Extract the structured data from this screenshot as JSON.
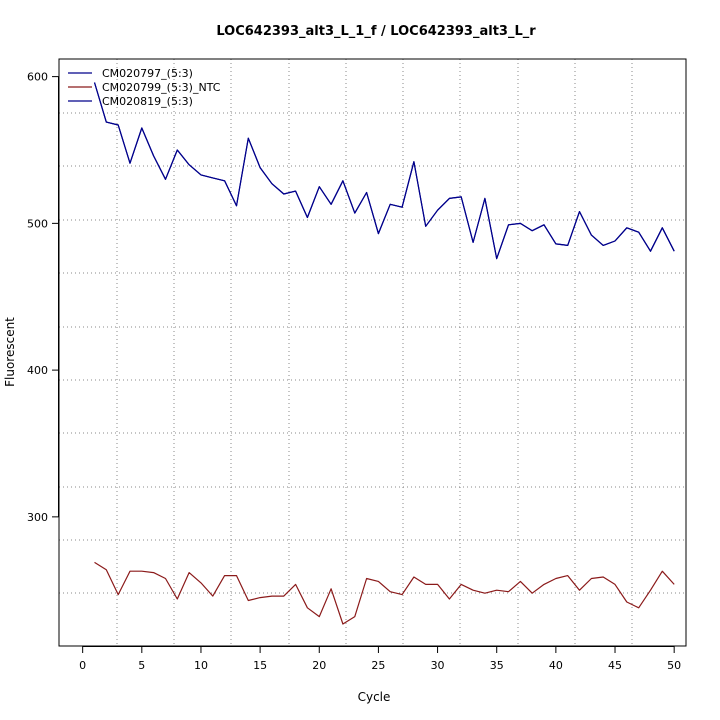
{
  "chart_data": {
    "type": "line",
    "title": "LOC642393_alt3_L_1_f / LOC642393_alt3_L_r",
    "xlabel": "Cycle",
    "ylabel": "Fluorescent",
    "xlim": [
      -2,
      51
    ],
    "ylim": [
      212,
      612
    ],
    "xticks": [
      0,
      5,
      10,
      15,
      20,
      25,
      30,
      35,
      40,
      45,
      50
    ],
    "yticks": [
      300,
      400,
      500,
      600
    ],
    "grid": "dotted gray lines",
    "legend_position": "top-left",
    "x": [
      1,
      2,
      3,
      4,
      5,
      6,
      7,
      8,
      9,
      10,
      11,
      12,
      13,
      14,
      15,
      16,
      17,
      18,
      19,
      20,
      21,
      22,
      23,
      24,
      25,
      26,
      27,
      28,
      29,
      30,
      31,
      32,
      33,
      34,
      35,
      36,
      37,
      38,
      39,
      40,
      41,
      42,
      43,
      44,
      45,
      46,
      47,
      48,
      49,
      50
    ],
    "series": [
      {
        "name": "CM020797_(5:3)",
        "color": "#00008b",
        "values": [
          596,
          569,
          567,
          541,
          565,
          546,
          530,
          550,
          540,
          533,
          531,
          529,
          512,
          558,
          538,
          527,
          520,
          522,
          504,
          525,
          513,
          529,
          507,
          521,
          493,
          513,
          511,
          542,
          498,
          509,
          517,
          518,
          487,
          517,
          476,
          499,
          500,
          495,
          499,
          486,
          485,
          508,
          492,
          485,
          488,
          497,
          494,
          481,
          497,
          481
        ]
      },
      {
        "name": "CM020799_(5:3)_NTC",
        "color": "#8b1a1a",
        "values": [
          269,
          264,
          247,
          263,
          263,
          262,
          258,
          244,
          262,
          255,
          246,
          260,
          260,
          243,
          245,
          246,
          246,
          254,
          238,
          232,
          251,
          227,
          232,
          258,
          256,
          249,
          247,
          259,
          254,
          254,
          244,
          254,
          250,
          248,
          250,
          249,
          256,
          248,
          254,
          258,
          260,
          250,
          258,
          259,
          254,
          242,
          238,
          250,
          263,
          254
        ]
      },
      {
        "name": "CM020819_(5:3)",
        "color": "#00008b",
        "values": [
          596,
          569,
          567,
          541,
          565,
          546,
          530,
          550,
          540,
          533,
          531,
          529,
          512,
          558,
          538,
          527,
          520,
          522,
          504,
          525,
          513,
          529,
          507,
          521,
          493,
          513,
          511,
          542,
          498,
          509,
          517,
          518,
          487,
          517,
          476,
          499,
          500,
          495,
          499,
          486,
          485,
          508,
          492,
          485,
          488,
          497,
          494,
          481,
          497,
          481
        ]
      }
    ]
  }
}
